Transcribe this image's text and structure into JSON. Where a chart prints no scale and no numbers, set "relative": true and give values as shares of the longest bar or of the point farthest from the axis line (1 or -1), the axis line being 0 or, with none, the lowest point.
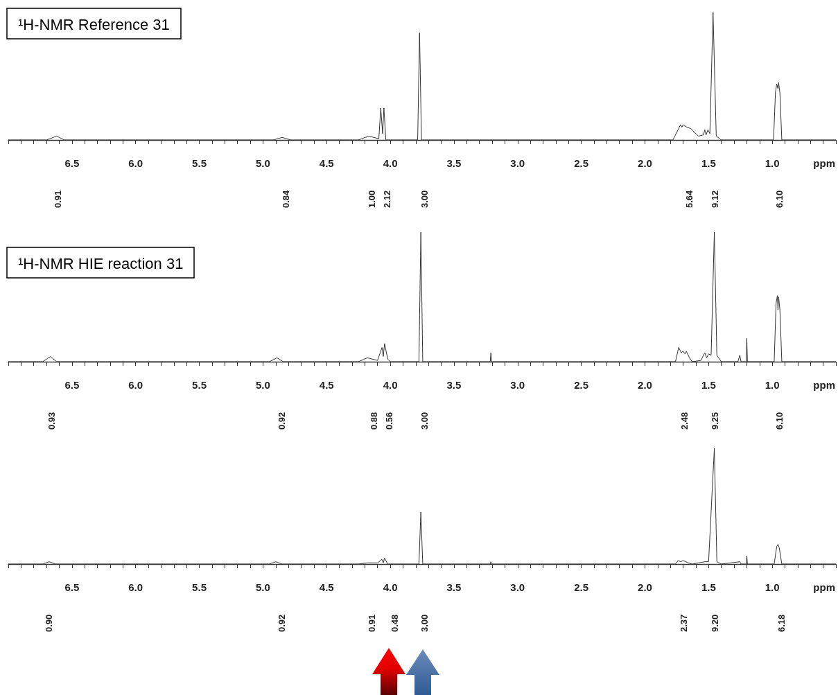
{
  "chart_data": [
    {
      "type": "line",
      "title": "¹H-NMR Reference 31",
      "xlabel": "ppm",
      "relative": true,
      "xlim": [
        7.0,
        0.5
      ],
      "xticks": [
        {
          "value": 7,
          "label": null
        },
        {
          "value": 6.9,
          "label": null
        },
        {
          "value": 6.8,
          "label": null
        },
        {
          "value": 6.7,
          "label": null
        },
        {
          "value": 6.6,
          "label": null
        },
        6.5,
        {
          "value": 6.4,
          "label": null
        },
        {
          "value": 6.3,
          "label": null
        },
        {
          "value": 6.2,
          "label": null
        },
        {
          "value": 6.1,
          "label": null
        },
        {
          "value": 6,
          "label": "6.0"
        },
        {
          "value": 5.9,
          "label": null
        },
        {
          "value": 5.8,
          "label": null
        },
        {
          "value": 5.7,
          "label": null
        },
        {
          "value": 5.6,
          "label": null
        },
        5.5,
        {
          "value": 5.4,
          "label": null
        },
        {
          "value": 5.3,
          "label": null
        },
        {
          "value": 5.2,
          "label": null
        },
        {
          "value": 5.1,
          "label": null
        },
        {
          "value": 5,
          "label": "5.0"
        },
        {
          "value": 4.9,
          "label": null
        },
        {
          "value": 4.8,
          "label": null
        },
        {
          "value": 4.7,
          "label": null
        },
        {
          "value": 4.6,
          "label": null
        },
        4.5,
        {
          "value": 4.4,
          "label": null
        },
        {
          "value": 4.3,
          "label": null
        },
        {
          "value": 4.2,
          "label": null
        },
        {
          "value": 4.1,
          "label": null
        },
        {
          "value": 4,
          "label": "4.0"
        },
        {
          "value": 3.9,
          "label": null
        },
        {
          "value": 3.8,
          "label": null
        },
        {
          "value": 3.7,
          "label": null
        },
        {
          "value": 3.6,
          "label": null
        },
        3.5,
        {
          "value": 3.4,
          "label": null
        },
        {
          "value": 3.3,
          "label": null
        },
        {
          "value": 3.2,
          "label": null
        },
        {
          "value": 3.1,
          "label": null
        },
        {
          "value": 3,
          "label": "3.0"
        },
        {
          "value": 2.9,
          "label": null
        },
        {
          "value": 2.8,
          "label": null
        },
        {
          "value": 2.7,
          "label": null
        },
        {
          "value": 2.6,
          "label": null
        },
        2.5,
        {
          "value": 2.4,
          "label": null
        },
        {
          "value": 2.3,
          "label": null
        },
        {
          "value": 2.2,
          "label": null
        },
        {
          "value": 2.1,
          "label": null
        },
        {
          "value": 2,
          "label": "2.0"
        },
        {
          "value": 1.9,
          "label": null
        },
        {
          "value": 1.8,
          "label": null
        },
        {
          "value": 1.7,
          "label": null
        },
        {
          "value": 1.6,
          "label": null
        },
        1.5,
        {
          "value": 1.4,
          "label": null
        },
        {
          "value": 1.3,
          "label": null
        },
        {
          "value": 1.2,
          "label": null
        },
        {
          "value": 1.1,
          "label": null
        },
        {
          "value": 1,
          "label": "1.0"
        },
        {
          "value": 0.9,
          "label": null
        },
        {
          "value": 0.8,
          "label": null
        },
        {
          "value": 0.7,
          "label": null
        },
        {
          "value": 0.6,
          "label": null
        },
        {
          "value": 0.5,
          "label": null
        }
      ],
      "series": [
        {
          "color": "#333333",
          "x": [
            7.0,
            6.7,
            6.62,
            6.56,
            4.92,
            4.85,
            4.78,
            4.25,
            4.17,
            4.09,
            4.075,
            4.06,
            4.05,
            4.035,
            3.785,
            3.77,
            3.755,
            1.78,
            1.74,
            1.72,
            1.71,
            1.7,
            1.67,
            1.64,
            1.58,
            1.54,
            1.53,
            1.52,
            1.505,
            1.49,
            1.465,
            1.44,
            1.4,
            0.99,
            0.975,
            0.965,
            0.955,
            0.95,
            0.94,
            0.925,
            0.5
          ],
          "values": [
            0,
            0,
            0.03,
            0,
            0,
            0.02,
            0,
            0,
            0.03,
            0.01,
            0.25,
            0.05,
            0.25,
            0,
            0,
            0.84,
            0,
            0,
            0.08,
            0.12,
            0.1,
            0.12,
            0.1,
            0.09,
            0.03,
            0.04,
            0.08,
            0.04,
            0.08,
            0.05,
            1,
            0.03,
            0,
            0,
            0.37,
            0.44,
            0.4,
            0.45,
            0.37,
            0,
            0
          ]
        }
      ],
      "annotations": [
        "0.91",
        "0.84",
        "1.00",
        "2.12",
        "3.00",
        "5.64",
        "9.12",
        "6.10"
      ]
    },
    {
      "type": "line",
      "title": "¹H-NMR HIE reaction 31",
      "xlabel": "ppm",
      "relative": true,
      "xlim": [
        7.0,
        0.5
      ],
      "xticks": [
        {
          "value": 7,
          "label": null
        },
        {
          "value": 6.9,
          "label": null
        },
        {
          "value": 6.8,
          "label": null
        },
        {
          "value": 6.7,
          "label": null
        },
        {
          "value": 6.6,
          "label": null
        },
        6.5,
        {
          "value": 6.4,
          "label": null
        },
        {
          "value": 6.3,
          "label": null
        },
        {
          "value": 6.2,
          "label": null
        },
        {
          "value": 6.1,
          "label": null
        },
        {
          "value": 6,
          "label": "6.0"
        },
        {
          "value": 5.9,
          "label": null
        },
        {
          "value": 5.8,
          "label": null
        },
        {
          "value": 5.7,
          "label": null
        },
        {
          "value": 5.6,
          "label": null
        },
        5.5,
        {
          "value": 5.4,
          "label": null
        },
        {
          "value": 5.3,
          "label": null
        },
        {
          "value": 5.2,
          "label": null
        },
        {
          "value": 5.1,
          "label": null
        },
        {
          "value": 5,
          "label": "5.0"
        },
        {
          "value": 4.9,
          "label": null
        },
        {
          "value": 4.8,
          "label": null
        },
        {
          "value": 4.7,
          "label": null
        },
        {
          "value": 4.6,
          "label": null
        },
        4.5,
        {
          "value": 4.4,
          "label": null
        },
        {
          "value": 4.3,
          "label": null
        },
        {
          "value": 4.2,
          "label": null
        },
        {
          "value": 4.1,
          "label": null
        },
        {
          "value": 4,
          "label": "4.0"
        },
        {
          "value": 3.9,
          "label": null
        },
        {
          "value": 3.8,
          "label": null
        },
        {
          "value": 3.7,
          "label": null
        },
        {
          "value": 3.6,
          "label": null
        },
        3.5,
        {
          "value": 3.4,
          "label": null
        },
        {
          "value": 3.3,
          "label": null
        },
        {
          "value": 3.2,
          "label": null
        },
        {
          "value": 3.1,
          "label": null
        },
        {
          "value": 3,
          "label": "3.0"
        },
        {
          "value": 2.9,
          "label": null
        },
        {
          "value": 2.8,
          "label": null
        },
        {
          "value": 2.7,
          "label": null
        },
        {
          "value": 2.6,
          "label": null
        },
        2.5,
        {
          "value": 2.4,
          "label": null
        },
        {
          "value": 2.3,
          "label": null
        },
        {
          "value": 2.2,
          "label": null
        },
        {
          "value": 2.1,
          "label": null
        },
        {
          "value": 2,
          "label": "2.0"
        },
        {
          "value": 1.9,
          "label": null
        },
        {
          "value": 1.8,
          "label": null
        },
        {
          "value": 1.7,
          "label": null
        },
        {
          "value": 1.6,
          "label": null
        },
        1.5,
        {
          "value": 1.4,
          "label": null
        },
        {
          "value": 1.3,
          "label": null
        },
        {
          "value": 1.2,
          "label": null
        },
        {
          "value": 1.1,
          "label": null
        },
        {
          "value": 1,
          "label": "1.0"
        },
        {
          "value": 0.9,
          "label": null
        },
        {
          "value": 0.8,
          "label": null
        },
        {
          "value": 0.7,
          "label": null
        },
        {
          "value": 0.6,
          "label": null
        },
        {
          "value": 0.5,
          "label": null
        }
      ],
      "series": [
        {
          "color": "#333333",
          "x": [
            7.0,
            6.73,
            6.67,
            6.62,
            4.95,
            4.89,
            4.84,
            4.25,
            4.18,
            4.1,
            4.065,
            4.055,
            4.045,
            4.02,
            4.0,
            3.775,
            3.76,
            3.745,
            3.215,
            3.21,
            3.205,
            1.76,
            1.735,
            1.715,
            1.7,
            1.685,
            1.675,
            1.65,
            1.63,
            1.56,
            1.53,
            1.515,
            1.5,
            1.48,
            1.455,
            1.435,
            1.4,
            1.27,
            1.255,
            1.245,
            1.205,
            1.2,
            1.195,
            0.985,
            0.97,
            0.96,
            0.955,
            0.95,
            0.94,
            0.925,
            0.5
          ],
          "values": [
            0,
            0,
            0.04,
            0,
            0,
            0.03,
            0,
            0,
            0.03,
            0.01,
            0.11,
            0.04,
            0.14,
            0.02,
            0,
            0,
            1,
            0,
            0,
            0.07,
            0,
            0,
            0.11,
            0.07,
            0.08,
            0.06,
            0.08,
            0.03,
            0,
            0.01,
            0.07,
            0.03,
            0.06,
            0.05,
            1,
            0.05,
            0,
            0,
            0.05,
            0,
            0,
            0.18,
            0,
            0,
            0.45,
            0.51,
            0.4,
            0.5,
            0.4,
            0,
            0
          ]
        }
      ],
      "annotations": [
        "0.93",
        "0.92",
        "0.88",
        "0.56",
        "3.00",
        "2.48",
        "9.25",
        "6.10"
      ]
    },
    {
      "type": "line",
      "xlabel": "ppm",
      "relative": true,
      "xlim": [
        7.0,
        0.5
      ],
      "xticks": [
        {
          "value": 7,
          "label": null
        },
        {
          "value": 6.9,
          "label": null
        },
        {
          "value": 6.8,
          "label": null
        },
        {
          "value": 6.7,
          "label": null
        },
        {
          "value": 6.6,
          "label": null
        },
        6.5,
        {
          "value": 6.4,
          "label": null
        },
        {
          "value": 6.3,
          "label": null
        },
        {
          "value": 6.2,
          "label": null
        },
        {
          "value": 6.1,
          "label": null
        },
        {
          "value": 6,
          "label": "6.0"
        },
        {
          "value": 5.9,
          "label": null
        },
        {
          "value": 5.8,
          "label": null
        },
        {
          "value": 5.7,
          "label": null
        },
        {
          "value": 5.6,
          "label": null
        },
        5.5,
        {
          "value": 5.4,
          "label": null
        },
        {
          "value": 5.3,
          "label": null
        },
        {
          "value": 5.2,
          "label": null
        },
        {
          "value": 5.1,
          "label": null
        },
        {
          "value": 5,
          "label": "5.0"
        },
        {
          "value": 4.9,
          "label": null
        },
        {
          "value": 4.8,
          "label": null
        },
        {
          "value": 4.7,
          "label": null
        },
        {
          "value": 4.6,
          "label": null
        },
        4.5,
        {
          "value": 4.4,
          "label": null
        },
        {
          "value": 4.3,
          "label": null
        },
        {
          "value": 4.2,
          "label": null
        },
        {
          "value": 4.1,
          "label": null
        },
        {
          "value": 4,
          "label": "4.0"
        },
        {
          "value": 3.9,
          "label": null
        },
        {
          "value": 3.8,
          "label": null
        },
        {
          "value": 3.7,
          "label": null
        },
        {
          "value": 3.6,
          "label": null
        },
        3.5,
        {
          "value": 3.4,
          "label": null
        },
        {
          "value": 3.3,
          "label": null
        },
        {
          "value": 3.2,
          "label": null
        },
        {
          "value": 3.1,
          "label": null
        },
        {
          "value": 3,
          "label": "3.0"
        },
        {
          "value": 2.9,
          "label": null
        },
        {
          "value": 2.8,
          "label": null
        },
        {
          "value": 2.7,
          "label": null
        },
        {
          "value": 2.6,
          "label": null
        },
        2.5,
        {
          "value": 2.4,
          "label": null
        },
        {
          "value": 2.3,
          "label": null
        },
        {
          "value": 2.2,
          "label": null
        },
        {
          "value": 2.1,
          "label": null
        },
        {
          "value": 2,
          "label": "2.0"
        },
        {
          "value": 1.9,
          "label": null
        },
        {
          "value": 1.8,
          "label": null
        },
        {
          "value": 1.7,
          "label": null
        },
        {
          "value": 1.6,
          "label": null
        },
        1.5,
        {
          "value": 1.4,
          "label": null
        },
        {
          "value": 1.3,
          "label": null
        },
        {
          "value": 1.2,
          "label": null
        },
        {
          "value": 1.1,
          "label": null
        },
        {
          "value": 1,
          "label": "1.0"
        },
        {
          "value": 0.9,
          "label": null
        },
        {
          "value": 0.8,
          "label": null
        },
        {
          "value": 0.7,
          "label": null
        },
        {
          "value": 0.6,
          "label": null
        },
        {
          "value": 0.5,
          "label": null
        }
      ],
      "series": [
        {
          "color": "#333333",
          "x": [
            7.0,
            6.73,
            6.68,
            6.63,
            4.95,
            4.9,
            4.85,
            4.25,
            4.18,
            4.1,
            4.065,
            4.055,
            4.045,
            4.02,
            3.775,
            3.76,
            3.745,
            3.215,
            3.21,
            3.205,
            1.76,
            1.74,
            1.72,
            1.7,
            1.66,
            1.63,
            1.53,
            1.5,
            1.455,
            1.435,
            1.4,
            1.255,
            1.245,
            1.205,
            1.2,
            1.195,
            0.985,
            0.965,
            0.955,
            0.945,
            0.925,
            0.5
          ],
          "values": [
            0,
            0,
            0.02,
            0,
            0,
            0.02,
            0,
            0,
            0.01,
            0.01,
            0.04,
            0.01,
            0.05,
            0,
            0,
            0.45,
            0,
            0,
            0.02,
            0,
            0,
            0.03,
            0.02,
            0.03,
            0.01,
            0,
            0.02,
            0.02,
            1,
            0.02,
            0,
            0.02,
            0,
            0,
            0.07,
            0,
            0,
            0.15,
            0.17,
            0.14,
            0,
            0
          ]
        }
      ],
      "annotations": [
        "0.90",
        "0.92",
        "0.91",
        "0.48",
        "3.00",
        "2.37",
        "9.20",
        "6.18"
      ]
    }
  ]
}
